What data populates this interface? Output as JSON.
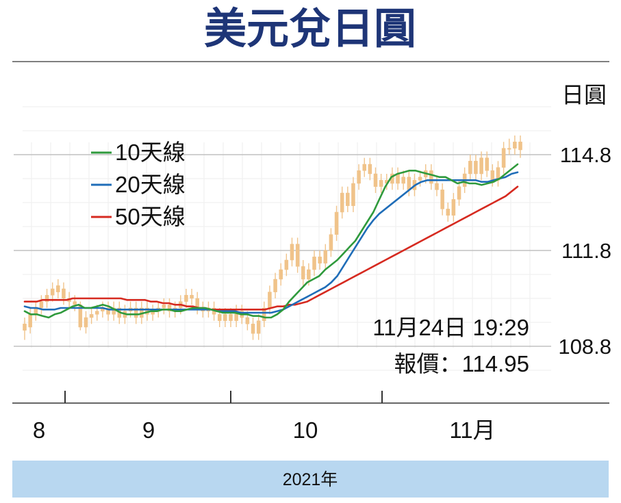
{
  "chart_data": {
    "type": "candlestick+line",
    "title": "美元兌日圓",
    "unit_label": "日圓",
    "y_ticks": [
      114.8,
      111.8,
      108.8
    ],
    "ylim": [
      106.9,
      116.3
    ],
    "x_month_labels": [
      "8",
      "9",
      "10",
      "11月"
    ],
    "year_label": "2021年",
    "annotation": {
      "datetime": "11月24日 19:29",
      "price_label": "報價：114.95"
    },
    "colors": {
      "title": "#1e3577",
      "candle": "#f0c38a",
      "ma10": "#2f9a3c",
      "ma20": "#1f6db8",
      "ma50": "#d62a20",
      "footer_band": "#b8d7f0"
    },
    "series": [
      {
        "name": "10天線",
        "values": [
          109.9,
          109.8,
          109.8,
          109.75,
          109.7,
          109.8,
          109.85,
          109.95,
          110.05,
          110.1,
          110.0,
          110.0,
          110.05,
          110.1,
          110.05,
          109.95,
          109.85,
          109.8,
          109.8,
          109.8,
          109.85,
          109.9,
          109.9,
          109.95,
          109.95,
          109.9,
          109.9,
          109.95,
          110.0,
          110.0,
          110.0,
          109.95,
          109.9,
          109.85,
          109.85,
          109.85,
          109.8,
          109.8,
          109.75,
          109.75,
          109.7,
          109.7,
          109.8,
          109.95,
          110.2,
          110.4,
          110.6,
          110.8,
          110.9,
          111.0,
          111.2,
          111.35,
          111.5,
          111.7,
          111.9,
          112.1,
          112.4,
          112.7,
          113.0,
          113.4,
          113.8,
          114.1,
          114.2,
          114.25,
          114.3,
          114.3,
          114.25,
          114.2,
          114.15,
          114.1,
          114.1,
          114.0,
          113.9,
          113.95,
          113.9,
          113.9,
          113.85,
          113.9,
          113.95,
          114.05,
          114.2,
          114.35,
          114.5
        ]
      },
      {
        "name": "20天線",
        "values": [
          110.05,
          110.0,
          110.0,
          109.95,
          109.95,
          109.95,
          110.0,
          110.0,
          110.0,
          110.0,
          110.0,
          110.0,
          110.0,
          110.0,
          109.95,
          109.95,
          109.95,
          109.95,
          109.95,
          109.95,
          109.95,
          109.95,
          109.95,
          109.95,
          109.95,
          109.95,
          109.95,
          109.95,
          109.95,
          109.95,
          109.95,
          109.95,
          109.9,
          109.9,
          109.9,
          109.9,
          109.85,
          109.85,
          109.85,
          109.85,
          109.85,
          109.85,
          109.9,
          109.95,
          110.05,
          110.15,
          110.25,
          110.35,
          110.45,
          110.55,
          110.65,
          110.8,
          111.0,
          111.3,
          111.6,
          111.9,
          112.2,
          112.5,
          112.75,
          112.95,
          113.1,
          113.25,
          113.4,
          113.55,
          113.7,
          113.85,
          113.95,
          114.0,
          114.0,
          114.0,
          114.0,
          114.0,
          114.0,
          114.0,
          114.0,
          114.0,
          113.95,
          113.95,
          114.0,
          114.05,
          114.1,
          114.2,
          114.25
        ]
      },
      {
        "name": "50天線",
        "values": [
          110.2,
          110.2,
          110.2,
          110.25,
          110.25,
          110.25,
          110.25,
          110.25,
          110.3,
          110.3,
          110.3,
          110.3,
          110.3,
          110.3,
          110.3,
          110.3,
          110.3,
          110.25,
          110.25,
          110.25,
          110.25,
          110.2,
          110.2,
          110.15,
          110.15,
          110.1,
          110.1,
          110.05,
          110.05,
          110.0,
          110.0,
          109.95,
          109.95,
          109.95,
          109.95,
          109.95,
          109.95,
          109.95,
          109.95,
          109.95,
          109.95,
          110.0,
          110.05,
          110.05,
          110.1,
          110.1,
          110.15,
          110.2,
          110.3,
          110.4,
          110.5,
          110.6,
          110.7,
          110.8,
          110.9,
          111.0,
          111.1,
          111.2,
          111.3,
          111.4,
          111.5,
          111.6,
          111.7,
          111.8,
          111.9,
          112.0,
          112.1,
          112.2,
          112.3,
          112.4,
          112.5,
          112.6,
          112.7,
          112.8,
          112.9,
          113.0,
          113.1,
          113.2,
          113.3,
          113.4,
          113.5,
          113.65,
          113.8
        ]
      }
    ],
    "candles": [
      [
        109.3,
        109.5,
        109.0,
        109.7
      ],
      [
        109.4,
        109.8,
        109.2,
        110.0
      ],
      [
        109.8,
        110.0,
        109.6,
        110.2
      ],
      [
        110.0,
        110.2,
        109.8,
        110.4
      ],
      [
        110.2,
        110.4,
        110.0,
        110.6
      ],
      [
        110.4,
        110.6,
        110.2,
        110.8
      ],
      [
        110.5,
        110.7,
        110.3,
        110.9
      ],
      [
        110.6,
        110.3,
        110.1,
        110.8
      ],
      [
        110.3,
        110.2,
        110.0,
        110.5
      ],
      [
        110.2,
        110.1,
        109.9,
        110.4
      ],
      [
        110.1,
        109.4,
        109.3,
        110.2
      ],
      [
        109.4,
        109.7,
        109.2,
        109.9
      ],
      [
        109.7,
        109.8,
        109.5,
        110.0
      ],
      [
        109.8,
        109.9,
        109.6,
        110.1
      ],
      [
        109.9,
        110.0,
        109.7,
        110.2
      ],
      [
        110.0,
        109.8,
        109.6,
        110.2
      ],
      [
        109.8,
        110.0,
        109.6,
        110.2
      ],
      [
        110.0,
        109.7,
        109.5,
        110.2
      ],
      [
        109.7,
        109.9,
        109.5,
        110.1
      ],
      [
        109.9,
        110.0,
        109.7,
        110.2
      ],
      [
        110.0,
        109.7,
        109.5,
        110.2
      ],
      [
        109.7,
        110.0,
        109.5,
        110.2
      ],
      [
        110.0,
        109.8,
        109.6,
        110.2
      ],
      [
        109.8,
        109.9,
        109.6,
        110.1
      ],
      [
        109.9,
        110.0,
        109.7,
        110.2
      ],
      [
        110.0,
        110.1,
        109.8,
        110.3
      ],
      [
        110.1,
        109.9,
        109.7,
        110.3
      ],
      [
        109.9,
        110.0,
        109.7,
        110.2
      ],
      [
        110.0,
        110.2,
        109.8,
        110.4
      ],
      [
        110.2,
        110.4,
        110.0,
        110.6
      ],
      [
        110.4,
        110.3,
        110.1,
        110.6
      ],
      [
        110.3,
        110.0,
        109.8,
        110.5
      ],
      [
        110.0,
        109.9,
        109.7,
        110.2
      ],
      [
        109.9,
        110.0,
        109.7,
        110.2
      ],
      [
        110.0,
        109.8,
        109.6,
        110.2
      ],
      [
        109.8,
        109.6,
        109.4,
        110.0
      ],
      [
        109.6,
        109.8,
        109.4,
        110.0
      ],
      [
        109.8,
        109.6,
        109.4,
        110.0
      ],
      [
        109.6,
        109.9,
        109.4,
        110.1
      ],
      [
        109.9,
        109.7,
        109.5,
        110.1
      ],
      [
        109.7,
        109.5,
        109.3,
        109.9
      ],
      [
        109.5,
        109.2,
        109.0,
        109.7
      ],
      [
        109.2,
        109.6,
        109.0,
        109.8
      ],
      [
        109.6,
        110.0,
        109.4,
        110.2
      ],
      [
        110.0,
        110.5,
        109.8,
        110.7
      ],
      [
        110.5,
        110.9,
        110.3,
        111.1
      ],
      [
        110.9,
        111.2,
        110.7,
        111.4
      ],
      [
        111.2,
        111.5,
        111.0,
        111.7
      ],
      [
        111.5,
        112.0,
        111.3,
        112.2
      ],
      [
        112.0,
        111.3,
        111.1,
        112.2
      ],
      [
        111.3,
        110.9,
        110.7,
        111.5
      ],
      [
        110.9,
        111.2,
        110.7,
        111.4
      ],
      [
        111.2,
        111.6,
        111.0,
        111.8
      ],
      [
        111.6,
        111.4,
        111.2,
        111.8
      ],
      [
        111.4,
        111.8,
        111.2,
        112.0
      ],
      [
        111.8,
        112.3,
        111.6,
        112.5
      ],
      [
        112.3,
        113.0,
        112.1,
        113.2
      ],
      [
        113.0,
        113.6,
        112.8,
        113.8
      ],
      [
        113.6,
        113.2,
        113.0,
        113.8
      ],
      [
        113.2,
        113.9,
        113.0,
        114.1
      ],
      [
        113.9,
        114.3,
        113.7,
        114.5
      ],
      [
        114.3,
        114.5,
        114.1,
        114.7
      ],
      [
        114.5,
        114.2,
        114.0,
        114.7
      ],
      [
        114.2,
        113.8,
        113.6,
        114.4
      ],
      [
        113.8,
        114.0,
        113.6,
        114.2
      ],
      [
        114.0,
        113.9,
        113.7,
        114.2
      ],
      [
        113.9,
        114.2,
        113.7,
        114.4
      ],
      [
        114.2,
        113.9,
        113.7,
        114.4
      ],
      [
        113.9,
        114.1,
        113.7,
        114.3
      ],
      [
        114.1,
        113.7,
        113.5,
        114.3
      ],
      [
        113.7,
        114.0,
        113.5,
        114.2
      ],
      [
        114.0,
        114.1,
        113.8,
        114.3
      ],
      [
        114.1,
        114.3,
        113.9,
        114.5
      ],
      [
        114.3,
        113.9,
        113.7,
        114.5
      ],
      [
        113.9,
        113.7,
        113.5,
        114.1
      ],
      [
        113.7,
        113.1,
        112.9,
        113.9
      ],
      [
        113.1,
        112.9,
        112.7,
        113.3
      ],
      [
        112.9,
        113.4,
        112.7,
        113.6
      ],
      [
        113.4,
        113.8,
        113.2,
        114.0
      ],
      [
        113.8,
        114.2,
        113.6,
        114.4
      ],
      [
        114.2,
        114.6,
        114.0,
        114.8
      ],
      [
        114.6,
        114.2,
        114.0,
        114.8
      ],
      [
        114.2,
        114.7,
        114.0,
        114.9
      ],
      [
        114.7,
        114.3,
        114.1,
        114.9
      ],
      [
        114.3,
        114.0,
        113.8,
        114.5
      ],
      [
        114.0,
        114.4,
        113.8,
        114.6
      ],
      [
        114.4,
        115.0,
        114.2,
        115.2
      ],
      [
        115.0,
        115.0,
        114.8,
        115.3
      ],
      [
        115.0,
        115.2,
        114.8,
        115.4
      ],
      [
        115.2,
        114.95,
        114.7,
        115.4
      ]
    ]
  }
}
